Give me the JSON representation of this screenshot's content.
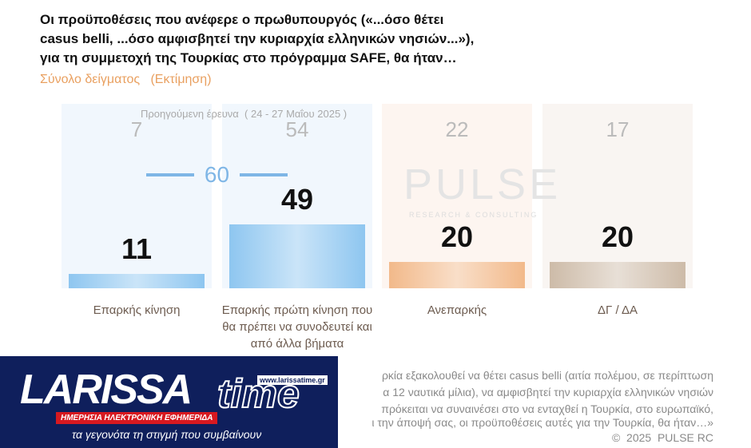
{
  "chart_data": {
    "type": "bar",
    "title": [
      "Οι προϋποθέσεις που ανέφερε ο πρωθυπουργός («...όσο θέτει",
      "casus belli,  ...όσο αμφισβητεί την κυριαρχία ελληνικών νησιών...»),",
      "για τη συμμετοχή της Τουρκίας στο πρόγραμμα SAFE, θα ήταν…"
    ],
    "subtitle": "Σύνολο δείγματος   (Εκτίμηση)",
    "categories": [
      "Επαρκής κίνηση",
      "Επαρκής πρώτη κίνηση που θα πρέπει να συνοδευτεί και από άλλα βήματα",
      "Ανεπαρκής",
      "ΔΓ / ΔΑ"
    ],
    "values": [
      11,
      49,
      20,
      20
    ],
    "colors": [
      "#8ec6f0",
      "#8ec6f0",
      "#f2b98a",
      "#cdbba8"
    ],
    "backgrounds": [
      "#eef5fc",
      "#eef5fc",
      "#fdf3ec",
      "#f7f3ef"
    ],
    "previous_label": "Προηγούμενη έρευνα  ( 24 - 27 Μαΐου 2025 )",
    "previous_values": [
      7,
      54,
      22,
      17
    ],
    "combined_value": 60,
    "watermark": {
      "text": "PULSE",
      "subtext": "RESEARCH & CONSULTING"
    },
    "footnote": [
      "ρκία εξακολουθεί να θέτει casus belli (αιτία πολέμου, σε περίπτωση",
      "α 12 ναυτικά μίλια), να αμφισβητεί την κυριαρχία ελληνικών νησιών",
      "πρόκειται να συναινέσει στο να ενταχθεί η Τουρκία, στο ευρωπαϊκό,",
      "ι την άποψή σας, οι προϋποθέσεις αυτές για την Τουρκία, θα ήταν…»"
    ],
    "copyright": "©  2025  PULSE RC"
  },
  "logo": {
    "name1": "LARISSA",
    "name2": "time",
    "url": "www.larissatime.gr",
    "tag": "ΗΜΕΡΗΣΙΑ ΗΛΕΚΤΡΟΝΙΚΗ ΕΦΗΜΕΡΙΔΑ",
    "slogan": "τα γεγονότα τη στιγμή που συμβαίνουν"
  }
}
